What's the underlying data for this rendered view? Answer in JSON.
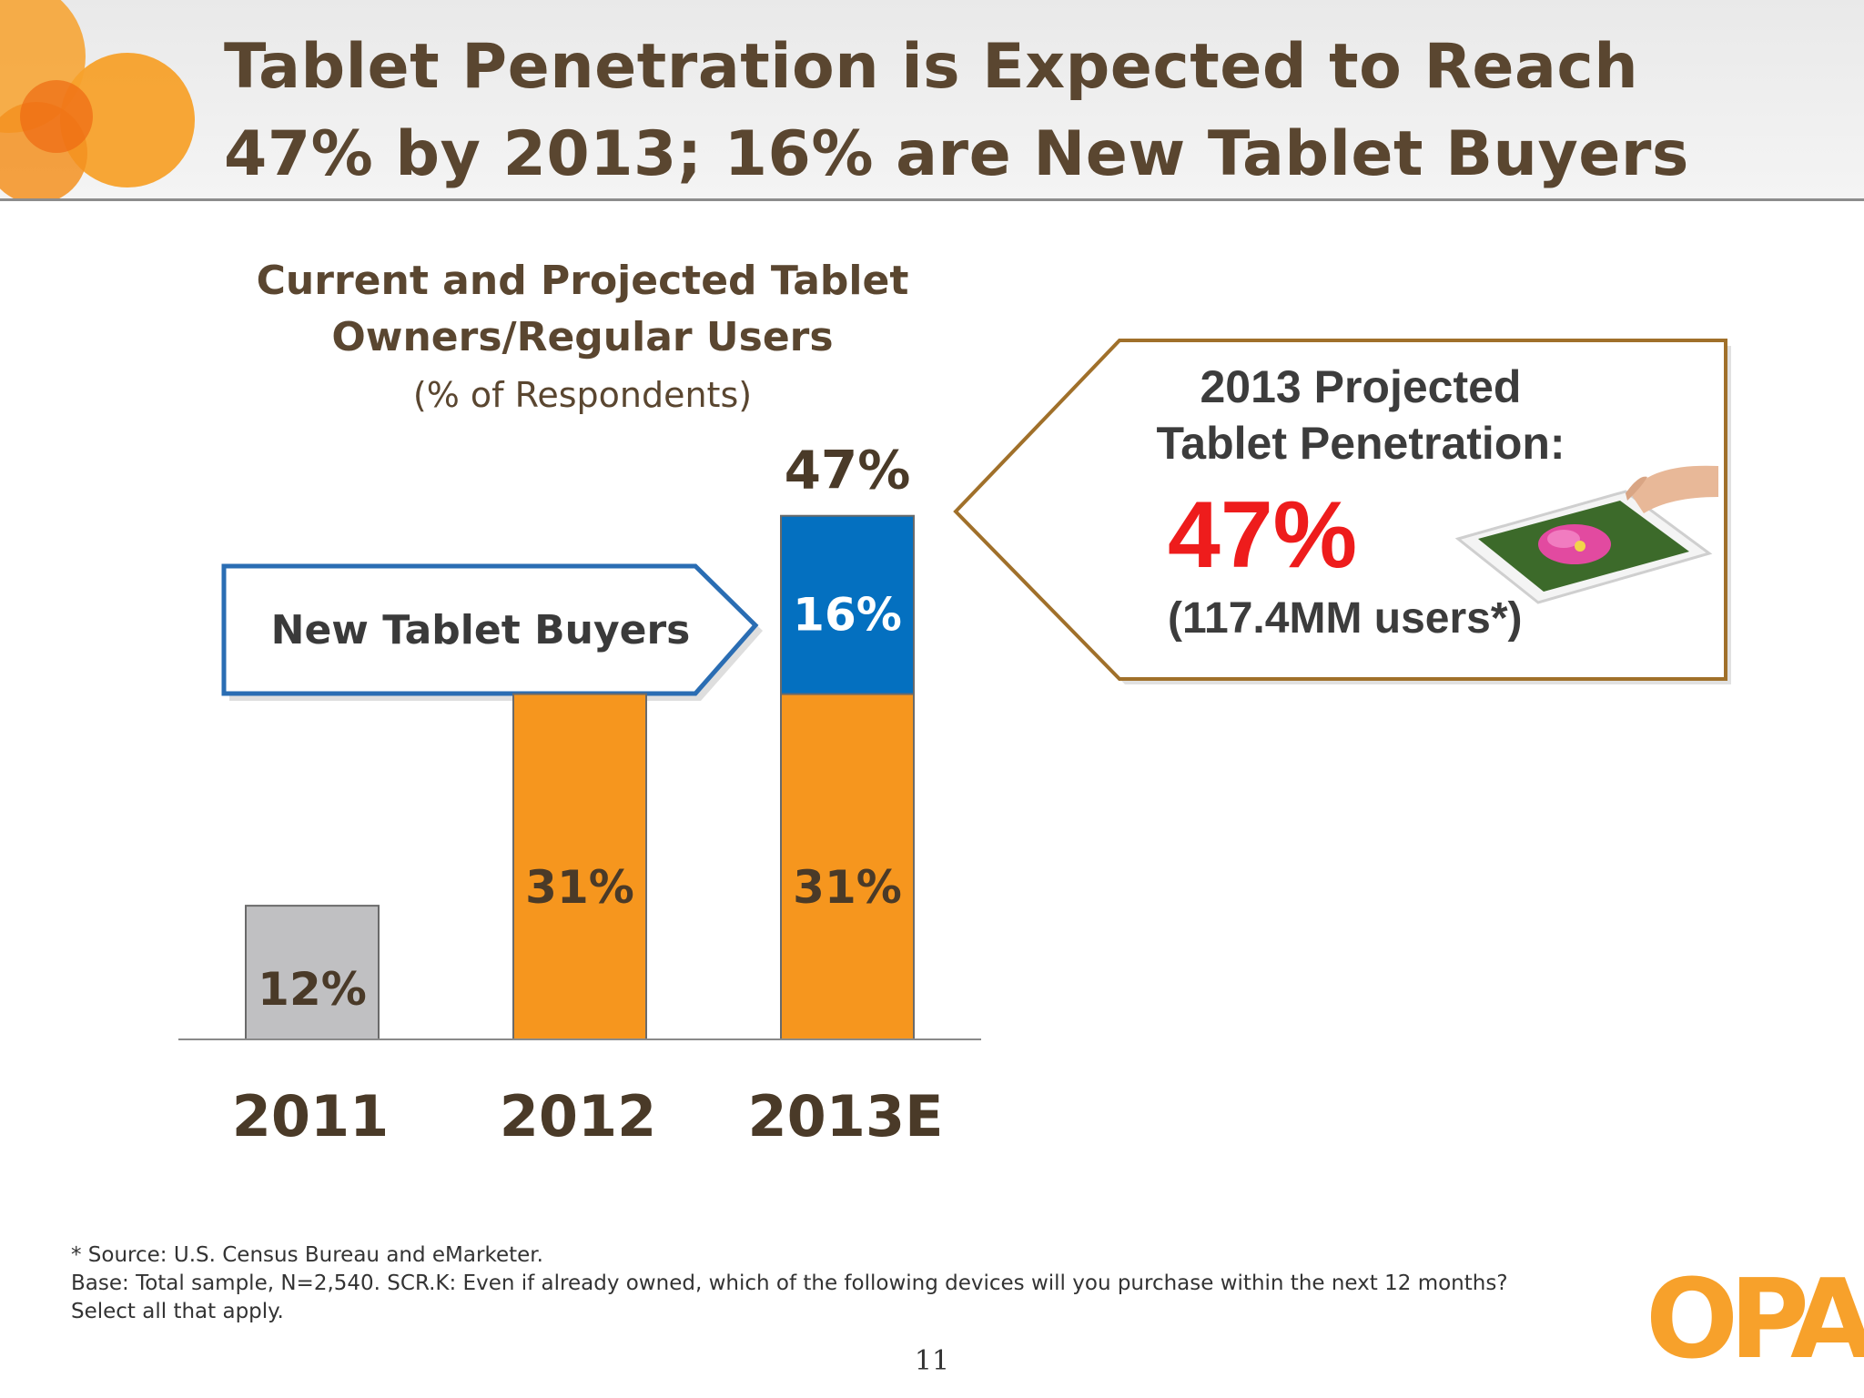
{
  "slide": {
    "title_lines": [
      "Tablet Penetration is Expected to Reach",
      "47% by 2013; 16% are New Tablet Buyers"
    ],
    "page_number": "11",
    "logo_text": "OPA"
  },
  "chart_data": {
    "type": "bar",
    "stacked": true,
    "title_lines": [
      "Current and Projected Tablet",
      "Owners/Regular Users"
    ],
    "subtitle": "(% of Respondents)",
    "categories": [
      "2011",
      "2012",
      "2013E"
    ],
    "series": [
      {
        "name": "",
        "values": [
          12,
          31,
          31
        ],
        "colors": [
          "#c0c0c2",
          "#f6961e",
          "#f6961e"
        ],
        "labels": [
          "12%",
          "31%",
          "31%"
        ]
      },
      {
        "name": "New Tablet Buyers",
        "values": [
          0,
          0,
          16
        ],
        "color": "#0470c0",
        "labels": [
          "",
          "",
          "16%"
        ]
      }
    ],
    "totals": [
      "",
      "",
      "47%"
    ],
    "ylim": [
      0,
      50
    ],
    "grid": false,
    "annotation": "New Tablet Buyers"
  },
  "callout": {
    "heading_lines": [
      "2013 Projected",
      "Tablet Penetration:"
    ],
    "value": "47%",
    "users": "(117.4MM users*)"
  },
  "footnote": {
    "lines": [
      "* Source:  U.S. Census Bureau and eMarketer.",
      "Base:  Total sample, N=2,540. SCR.K:  Even if already owned, which of the following devices will you purchase within the next 12 months?",
      "Select all that apply."
    ]
  },
  "colors": {
    "title": "#5a4630",
    "accent_orange": "#f6961e",
    "accent_blue": "#0470c0",
    "callout_border": "#a0702a",
    "callout_value": "#ee1c1c"
  },
  "icons": [
    "decorative-circles",
    "tablet-photo",
    "opa-logo"
  ]
}
